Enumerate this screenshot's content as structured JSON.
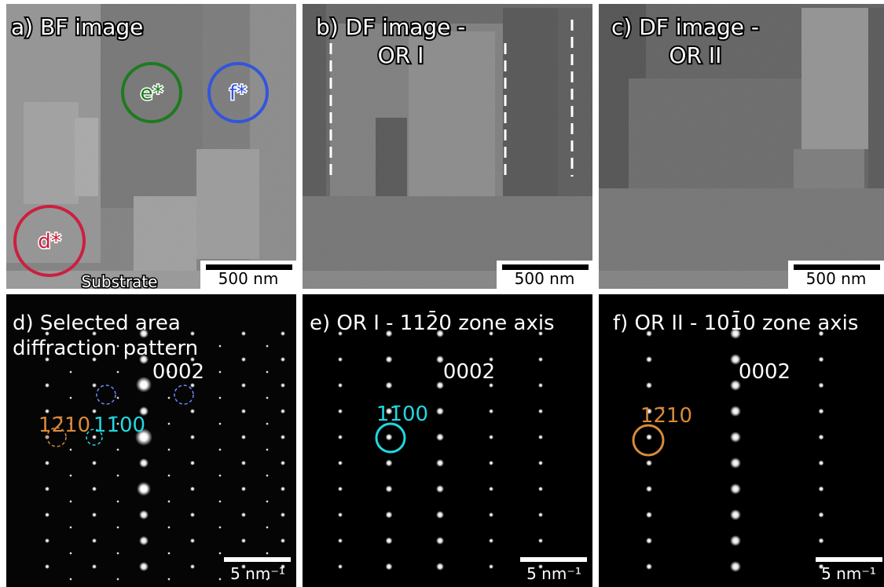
{
  "panels": [
    {
      "title": [
        "a) BF image"
      ],
      "labels": [
        "e*",
        "f*",
        "d*",
        "Substrate"
      ],
      "scale_bar": "500 nm"
    },
    {
      "title": [
        "b) DF image -",
        "OR I"
      ],
      "scale_bar": "500 nm"
    },
    {
      "title": [
        "c) DF image -",
        "OR II"
      ],
      "scale_bar": "500 nm"
    },
    {
      "title": [
        "d) Selected area",
        "diffraction pattern"
      ],
      "labels": [
        "0002",
        "12̄10",
        "11̄00"
      ],
      "scale_bar": "5 nm⁻¹"
    },
    {
      "title": [
        "e) OR I - 112̄0 zone axis"
      ],
      "labels": [
        "0002",
        "11̄00"
      ],
      "scale_bar": "5 nm⁻¹"
    },
    {
      "title": [
        "f) OR II - 101̄0 zone axis"
      ],
      "labels": [
        "0002",
        "12̄10"
      ],
      "scale_bar": "5 nm⁻¹"
    }
  ]
}
